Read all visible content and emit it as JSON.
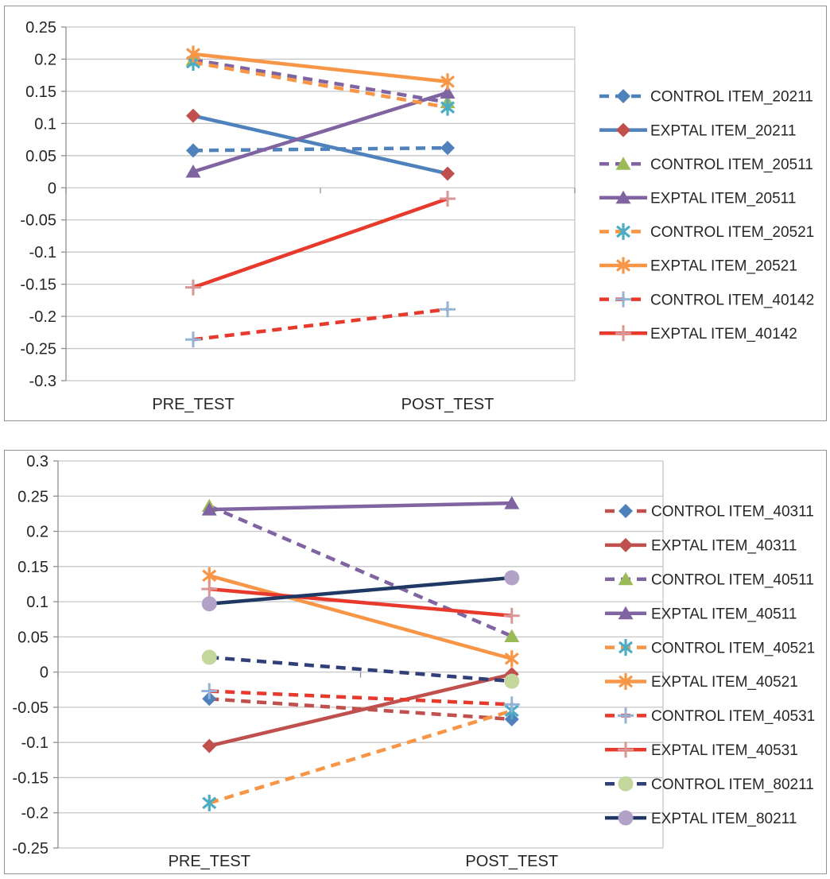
{
  "figure": {
    "background": "#ffffff",
    "border_color": "#929292",
    "gridline_color": "#C6C6C6",
    "axis_color": "#8F8F8F",
    "text_color": "#262626"
  },
  "chart_data": [
    {
      "name": "pre-post-chart-top",
      "type": "line",
      "categories": [
        "PRE_TEST",
        "POST_TEST"
      ],
      "y_axis": {
        "max": 0.25,
        "min": -0.3,
        "step": 0.05,
        "tick_labels": [
          "0.25",
          "0.2",
          "0.15",
          "0.1",
          "0.05",
          "0",
          "-0.05",
          "-0.1",
          "-0.15",
          "-0.2",
          "-0.25",
          "-0.3"
        ]
      },
      "grid": true,
      "legend_position": "right",
      "series": [
        {
          "label": "CONTROL ITEM_20211",
          "values": [
            0.058,
            0.062
          ],
          "line_color": "#4F81BD",
          "line_style": "dashed",
          "marker": "diamond",
          "marker_color": "#4F81BD"
        },
        {
          "label": "EXPTAL ITEM_20211",
          "values": [
            0.112,
            0.022
          ],
          "line_color": "#4F81BD",
          "line_style": "solid",
          "marker": "diamond",
          "marker_color": "#C0504D"
        },
        {
          "label": "CONTROL ITEM_20511",
          "values": [
            0.199,
            0.133
          ],
          "line_color": "#8064A2",
          "line_style": "dashed",
          "marker": "triangle",
          "marker_color": "#9BBB59"
        },
        {
          "label": "EXPTAL ITEM_20511",
          "values": [
            0.025,
            0.148
          ],
          "line_color": "#8064A2",
          "line_style": "solid",
          "marker": "triangle",
          "marker_color": "#8064A2"
        },
        {
          "label": "CONTROL ITEM_20521",
          "values": [
            0.195,
            0.125
          ],
          "line_color": "#F79646",
          "line_style": "dashed",
          "marker": "asterisk",
          "marker_color": "#4BACC6"
        },
        {
          "label": "EXPTAL ITEM_20521",
          "values": [
            0.208,
            0.165
          ],
          "line_color": "#F79646",
          "line_style": "solid",
          "marker": "asterisk",
          "marker_color": "#F79646"
        },
        {
          "label": "CONTROL ITEM_40142",
          "values": [
            -0.236,
            -0.189
          ],
          "line_color": "#E8392D",
          "line_style": "dashed",
          "marker": "plus",
          "marker_color": "#95B3D7"
        },
        {
          "label": "EXPTAL ITEM_40142",
          "values": [
            -0.155,
            -0.017
          ],
          "line_color": "#E8392D",
          "line_style": "solid",
          "marker": "plus",
          "marker_color": "#D99694"
        }
      ]
    },
    {
      "name": "pre-post-chart-bottom",
      "type": "line",
      "categories": [
        "PRE_TEST",
        "POST_TEST"
      ],
      "y_axis": {
        "max": 0.3,
        "min": -0.25,
        "step": 0.05,
        "tick_labels": [
          "0.3",
          "0.25",
          "0.2",
          "0.15",
          "0.1",
          "0.05",
          "0",
          "-0.05",
          "-0.1",
          "-0.15",
          "-0.2",
          "-0.25"
        ]
      },
      "grid": true,
      "legend_position": "right",
      "series": [
        {
          "label": "CONTROL ITEM_40311",
          "values": [
            -0.038,
            -0.067
          ],
          "line_color": "#C0504D",
          "line_style": "dashed",
          "marker": "diamond",
          "marker_color": "#4F81BD"
        },
        {
          "label": "EXPTAL ITEM_40311",
          "values": [
            -0.105,
            -0.003
          ],
          "line_color": "#C0504D",
          "line_style": "solid",
          "marker": "diamond",
          "marker_color": "#C0504D"
        },
        {
          "label": "CONTROL ITEM_40511",
          "values": [
            0.236,
            0.051
          ],
          "line_color": "#8064A2",
          "line_style": "dashed",
          "marker": "triangle",
          "marker_color": "#9BBB59"
        },
        {
          "label": "EXPTAL ITEM_40511",
          "values": [
            0.231,
            0.24
          ],
          "line_color": "#8064A2",
          "line_style": "solid",
          "marker": "triangle",
          "marker_color": "#8064A2"
        },
        {
          "label": "CONTROL ITEM_40521",
          "values": [
            -0.186,
            -0.055
          ],
          "line_color": "#F79646",
          "line_style": "dashed",
          "marker": "asterisk",
          "marker_color": "#4BACC6"
        },
        {
          "label": "EXPTAL ITEM_40521",
          "values": [
            0.137,
            0.019
          ],
          "line_color": "#F79646",
          "line_style": "solid",
          "marker": "asterisk",
          "marker_color": "#F79646"
        },
        {
          "label": "CONTROL ITEM_40531",
          "values": [
            -0.027,
            -0.046
          ],
          "line_color": "#E8392D",
          "line_style": "dashed",
          "marker": "plus",
          "marker_color": "#95B3D7"
        },
        {
          "label": "EXPTAL ITEM_40531",
          "values": [
            0.118,
            0.08
          ],
          "line_color": "#E8392D",
          "line_style": "solid",
          "marker": "plus",
          "marker_color": "#D99694"
        },
        {
          "label": "CONTROL ITEM_80211",
          "values": [
            0.021,
            -0.013
          ],
          "line_color": "#303F77",
          "line_style": "dashed",
          "marker": "circle",
          "marker_color": "#C3D69B"
        },
        {
          "label": "EXPTAL ITEM_80211",
          "values": [
            0.097,
            0.134
          ],
          "line_color": "#1F3864",
          "line_style": "solid",
          "marker": "circle",
          "marker_color": "#B3A2C7"
        }
      ]
    }
  ]
}
